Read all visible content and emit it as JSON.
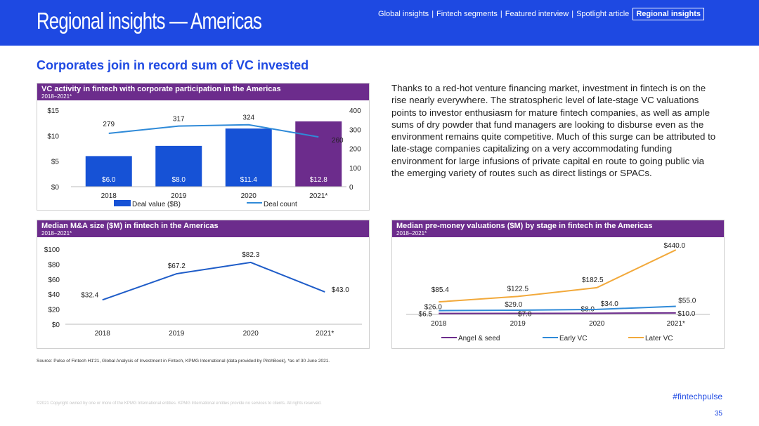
{
  "header": {
    "title": "Regional insights — Americas",
    "nav": [
      "Global insights",
      "Fintech segments",
      "Featured interview",
      "Spotlight article"
    ],
    "nav_active": "Regional insights",
    "nav_separator": "|"
  },
  "headline": "Corporates join in record sum of VC invested",
  "paragraph": "Thanks to a red-hot venture financing market, investment in fintech is on the rise nearly everywhere. The stratospheric level of late-stage VC valuations points to investor enthusiasm for mature fintech companies, as well as ample sums of dry powder that fund managers are looking to disburse even as the environment remains quite competitive. Much of this surge can be attributed to late-stage companies capitalizing on a very accommodating funding environment for large infusions of private capital en route to going public via the emerging variety of routes such as direct listings or SPACs.",
  "panels": {
    "vc": {
      "title": "VC activity in fintech with corporate participation in the Americas",
      "subtitle": "2018–2021*"
    },
    "ma": {
      "title": "Median M&A size ($M) in fintech in the Americas",
      "subtitle": "2018–2021*"
    },
    "val": {
      "title": "Median pre-money valuations ($M) by stage in fintech in the Americas",
      "subtitle": "2018–2021*"
    }
  },
  "chart_data": [
    {
      "type": "bar",
      "categories": [
        "2018",
        "2019",
        "2020",
        "2021*"
      ],
      "series": [
        {
          "name": "Deal value ($B)",
          "values": [
            6.0,
            8.0,
            11.4,
            12.8
          ],
          "labels": [
            "$6.0",
            "$8.0",
            "$11.4",
            "$12.8"
          ],
          "axis": "left"
        },
        {
          "name": "Deal count",
          "type": "line",
          "values": [
            279,
            317,
            324,
            260
          ],
          "axis": "right"
        }
      ],
      "ylim_left": [
        0,
        15
      ],
      "yticks_left": [
        "$0",
        "$5",
        "$10",
        "$15"
      ],
      "ytick_values_left": [
        0,
        5,
        10,
        15
      ],
      "ylim_right": [
        0,
        400
      ],
      "yticks_right": [
        "0",
        "100",
        "200",
        "300",
        "400"
      ],
      "ytick_values_right": [
        0,
        100,
        200,
        300,
        400
      ],
      "legend": "bottom",
      "colors": {
        "bar": "#1652d6",
        "bar_last": "#6c2c8c",
        "line": "#2f8ad8"
      }
    },
    {
      "type": "line",
      "categories": [
        "2018",
        "2019",
        "2020",
        "2021*"
      ],
      "values": [
        32.4,
        67.2,
        82.3,
        43.0
      ],
      "labels": [
        "$32.4",
        "$67.2",
        "$82.3",
        "$43.0"
      ],
      "ylim": [
        0,
        100
      ],
      "yticks": [
        "$0",
        "$20",
        "$40",
        "$60",
        "$80",
        "$100"
      ],
      "ytick_values": [
        0,
        20,
        40,
        60,
        80,
        100
      ],
      "colors": {
        "line": "#1e5cc8"
      }
    },
    {
      "type": "line",
      "categories": [
        "2018",
        "2019",
        "2020",
        "2021*"
      ],
      "series": [
        {
          "name": "Angel & seed",
          "values": [
            6.5,
            7.0,
            8.0,
            10.0
          ],
          "labels": [
            "$6.5",
            "$7.0",
            "$8.0",
            "$10.0"
          ],
          "color": "#6c2c8c"
        },
        {
          "name": "Early VC",
          "values": [
            26.0,
            29.0,
            34.0,
            55.0
          ],
          "labels": [
            "$26.0",
            "$29.0",
            "$34.0",
            "$55.0"
          ],
          "color": "#2f8ad8"
        },
        {
          "name": "Later VC",
          "values": [
            85.4,
            122.5,
            182.5,
            440.0
          ],
          "labels": [
            "$85.4",
            "$122.5",
            "$182.5",
            "$440.0"
          ],
          "color": "#f2a93b"
        }
      ],
      "ylim": [
        0,
        450
      ],
      "legend": "bottom"
    }
  ],
  "source": "Source: Pulse of Fintech H1'21, Global Analysis of Investment in Fintech, KPMG International (data provided by PitchBook), *as of 30 June 2021.",
  "copyright": "©2021 Copyright owned by one or more of the KPMG International entities. KPMG International entities provide no services to clients. All rights reserved.",
  "hashtag": "#fintechpulse",
  "page_number": "35"
}
